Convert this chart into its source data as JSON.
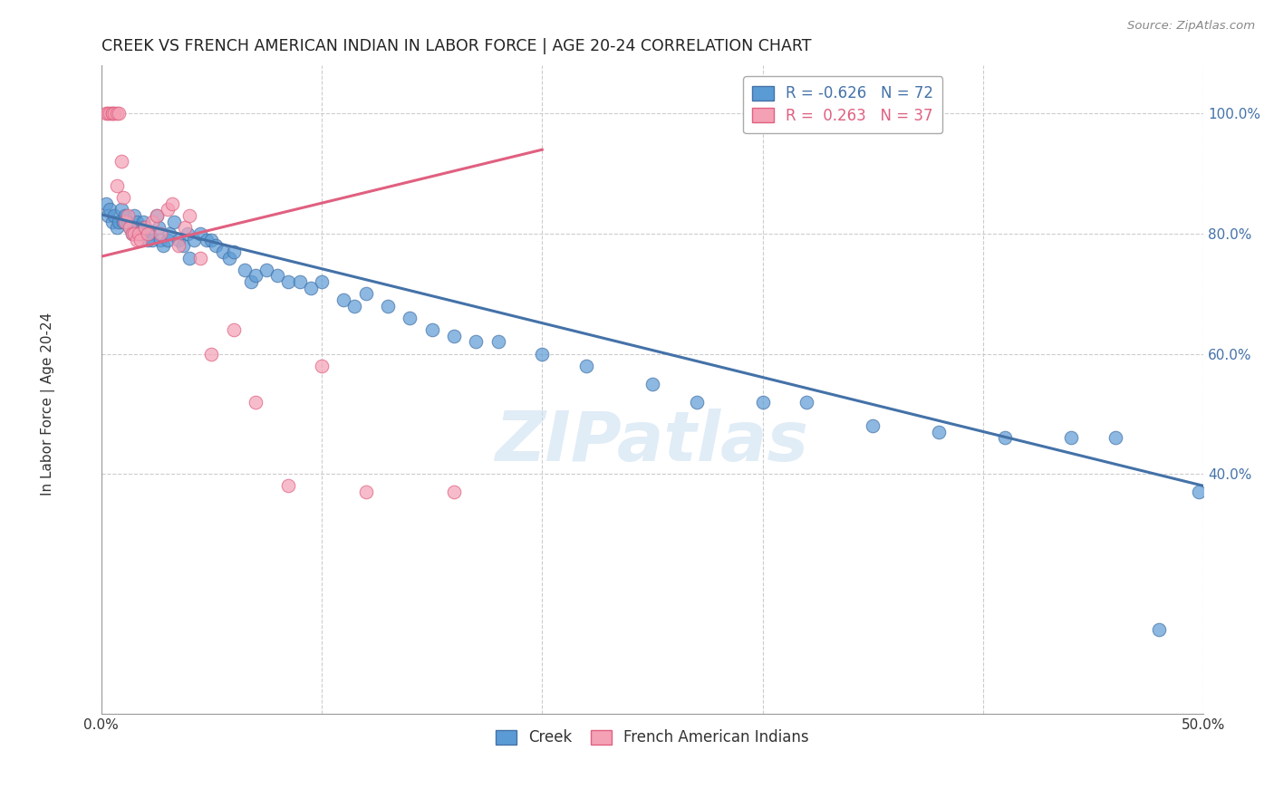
{
  "title": "CREEK VS FRENCH AMERICAN INDIAN IN LABOR FORCE | AGE 20-24 CORRELATION CHART",
  "source_text": "Source: ZipAtlas.com",
  "ylabel": "In Labor Force | Age 20-24",
  "xlim": [
    0.0,
    0.5
  ],
  "ylim": [
    0.0,
    1.08
  ],
  "xtick_values": [
    0.0,
    0.1,
    0.2,
    0.3,
    0.4,
    0.5
  ],
  "xtick_labels": [
    "0.0%",
    "",
    "",
    "",
    "",
    "50.0%"
  ],
  "ytick_values": [
    0.4,
    0.6,
    0.8,
    1.0
  ],
  "ytick_labels": [
    "40.0%",
    "60.0%",
    "80.0%",
    "100.0%"
  ],
  "creek_color": "#5b9bd5",
  "creek_edge": "#4472a8",
  "french_color": "#f4a0b5",
  "french_edge": "#e06080",
  "creek_R": -0.626,
  "creek_N": 72,
  "french_R": 0.263,
  "french_N": 37,
  "watermark": "ZIPatlas",
  "background_color": "#ffffff",
  "grid_color": "#cccccc",
  "creek_x": [
    0.002,
    0.003,
    0.004,
    0.005,
    0.006,
    0.007,
    0.008,
    0.009,
    0.01,
    0.011,
    0.012,
    0.013,
    0.014,
    0.015,
    0.016,
    0.017,
    0.018,
    0.019,
    0.02,
    0.021,
    0.022,
    0.023,
    0.025,
    0.026,
    0.027,
    0.028,
    0.03,
    0.031,
    0.033,
    0.035,
    0.037,
    0.039,
    0.04,
    0.042,
    0.045,
    0.048,
    0.05,
    0.052,
    0.055,
    0.058,
    0.06,
    0.065,
    0.068,
    0.07,
    0.075,
    0.08,
    0.085,
    0.09,
    0.095,
    0.1,
    0.11,
    0.115,
    0.12,
    0.13,
    0.14,
    0.15,
    0.16,
    0.17,
    0.18,
    0.2,
    0.22,
    0.25,
    0.27,
    0.3,
    0.32,
    0.35,
    0.38,
    0.41,
    0.44,
    0.46,
    0.48,
    0.498
  ],
  "creek_y": [
    0.85,
    0.83,
    0.84,
    0.82,
    0.83,
    0.81,
    0.82,
    0.84,
    0.82,
    0.83,
    0.82,
    0.81,
    0.8,
    0.83,
    0.82,
    0.81,
    0.8,
    0.82,
    0.81,
    0.79,
    0.8,
    0.79,
    0.83,
    0.81,
    0.79,
    0.78,
    0.79,
    0.8,
    0.82,
    0.79,
    0.78,
    0.8,
    0.76,
    0.79,
    0.8,
    0.79,
    0.79,
    0.78,
    0.77,
    0.76,
    0.77,
    0.74,
    0.72,
    0.73,
    0.74,
    0.73,
    0.72,
    0.72,
    0.71,
    0.72,
    0.69,
    0.68,
    0.7,
    0.68,
    0.66,
    0.64,
    0.63,
    0.62,
    0.62,
    0.6,
    0.58,
    0.55,
    0.52,
    0.52,
    0.52,
    0.48,
    0.47,
    0.46,
    0.46,
    0.46,
    0.14,
    0.37
  ],
  "french_x": [
    0.002,
    0.003,
    0.004,
    0.005,
    0.005,
    0.006,
    0.007,
    0.007,
    0.008,
    0.009,
    0.01,
    0.011,
    0.012,
    0.013,
    0.014,
    0.015,
    0.016,
    0.017,
    0.018,
    0.02,
    0.021,
    0.023,
    0.025,
    0.027,
    0.03,
    0.032,
    0.035,
    0.038,
    0.04,
    0.045,
    0.05,
    0.06,
    0.07,
    0.085,
    0.1,
    0.12,
    0.16
  ],
  "french_y": [
    1.0,
    1.0,
    1.0,
    1.0,
    1.0,
    1.0,
    1.0,
    0.88,
    1.0,
    0.92,
    0.86,
    0.82,
    0.83,
    0.81,
    0.8,
    0.8,
    0.79,
    0.8,
    0.79,
    0.81,
    0.8,
    0.82,
    0.83,
    0.8,
    0.84,
    0.85,
    0.78,
    0.81,
    0.83,
    0.76,
    0.6,
    0.64,
    0.52,
    0.38,
    0.58,
    0.37,
    0.37
  ],
  "creek_line_x": [
    0.0,
    0.5
  ],
  "creek_line_y": [
    0.832,
    0.38
  ],
  "french_line_x": [
    0.0,
    0.2
  ],
  "french_line_y": [
    0.762,
    0.94
  ]
}
